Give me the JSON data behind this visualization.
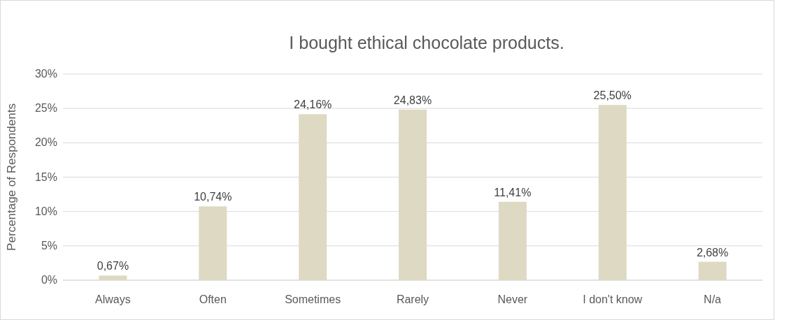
{
  "chart_data": {
    "type": "bar",
    "title": "I bought ethical chocolate products.",
    "ylabel": "Percentage of Respondents",
    "categories": [
      "Always",
      "Often",
      "Sometimes",
      "Rarely",
      "Never",
      "I don't know",
      "N/a"
    ],
    "values": [
      0.67,
      10.74,
      24.16,
      24.83,
      11.41,
      25.5,
      2.68
    ],
    "value_labels": [
      "0,67%",
      "10,74%",
      "24,16%",
      "24,83%",
      "11,41%",
      "25,50%",
      "2,68%"
    ],
    "color": "#ddd9c3",
    "ylim": [
      0,
      30
    ],
    "yticks": [
      {
        "value": 0,
        "label": "0%"
      },
      {
        "value": 5,
        "label": "5%"
      },
      {
        "value": 10,
        "label": "10%"
      },
      {
        "value": 15,
        "label": "15%"
      },
      {
        "value": 20,
        "label": "20%"
      },
      {
        "value": 25,
        "label": "25%"
      },
      {
        "value": 30,
        "label": "30%"
      }
    ],
    "grid": "y"
  }
}
